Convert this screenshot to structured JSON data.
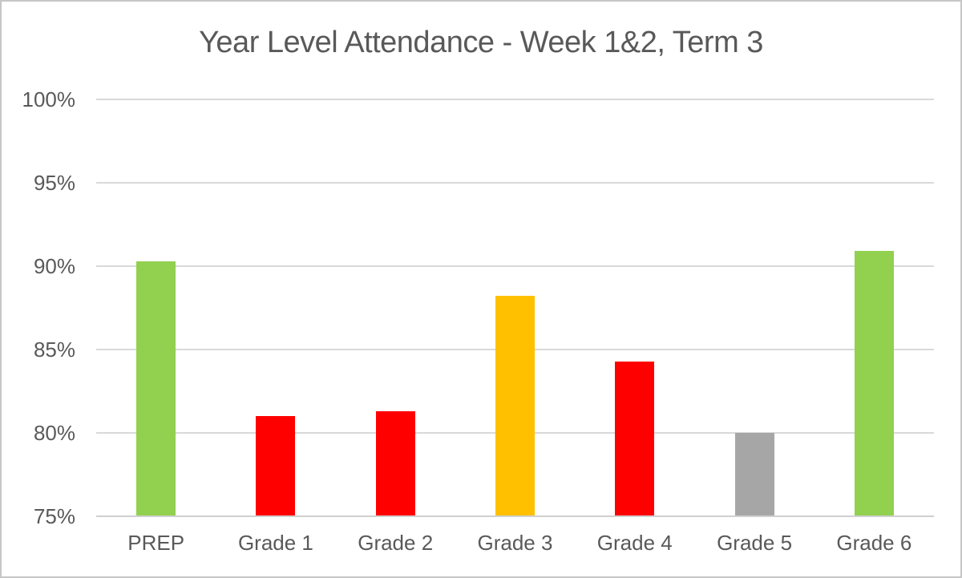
{
  "chart_data": {
    "type": "bar",
    "title": "Year Level Attendance - Week 1&2, Term 3",
    "categories": [
      "PREP",
      "Grade 1",
      "Grade 2",
      "Grade 3",
      "Grade 4",
      "Grade 5",
      "Grade 6"
    ],
    "values": [
      90.3,
      81.0,
      81.3,
      88.2,
      84.3,
      80.0,
      90.9
    ],
    "bar_colors": [
      "#92D050",
      "#FF0000",
      "#FF0000",
      "#FFC000",
      "#FF0000",
      "#A6A6A6",
      "#92D050"
    ],
    "xlabel": "",
    "ylabel": "",
    "ylim": [
      75,
      100
    ],
    "yticks": [
      75,
      80,
      85,
      90,
      95,
      100
    ],
    "ytick_labels": [
      "75%",
      "80%",
      "85%",
      "90%",
      "95%",
      "100%"
    ],
    "grid": true,
    "legend": false
  },
  "theme": {
    "text_color": "#595959",
    "gridline_color": "#d9d9d9",
    "axis_line_color": "#d0d0d0",
    "frame_border_color": "#c6c6c6",
    "background": "#ffffff"
  }
}
